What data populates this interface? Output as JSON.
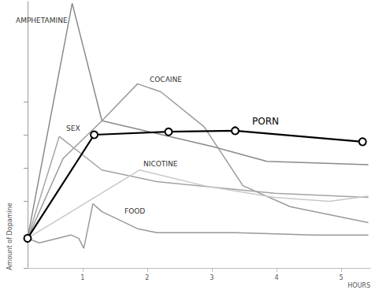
{
  "chart_data": {
    "type": "line",
    "xlabel": "HOURS",
    "ylabel": "Amount of Dopamine",
    "xlim": [
      0.15,
      5.45
    ],
    "xticks": [
      1,
      2,
      3,
      4,
      5
    ],
    "ylim": [
      0,
      8
    ],
    "yticks": [
      0,
      1,
      2,
      3,
      4,
      5
    ],
    "grid": false,
    "tick_labels": "x",
    "series": [
      {
        "name": "AMPHETAMINE",
        "color": "#8a8a8a",
        "x": [
          0.15,
          0.84,
          1.3,
          3.0,
          3.85,
          5.42
        ],
        "values": [
          0.89,
          7.95,
          4.42,
          3.65,
          3.2,
          3.1
        ]
      },
      {
        "name": "COCAINE",
        "color": "#9a9a9a",
        "x": [
          0.15,
          0.7,
          1.3,
          1.85,
          2.21,
          2.88,
          3.48,
          4.21,
          5.42
        ],
        "values": [
          0.89,
          3.29,
          4.42,
          5.53,
          5.29,
          4.24,
          2.47,
          1.84,
          1.36
        ]
      },
      {
        "name": "SEX",
        "color": "#a3a3a3",
        "x": [
          0.15,
          0.64,
          1.3,
          2.15,
          3.97,
          5.42
        ],
        "values": [
          0.89,
          3.95,
          2.94,
          2.59,
          2.24,
          2.12
        ]
      },
      {
        "name": "PORN",
        "color": "#000000",
        "marker": "circle",
        "x": [
          0.15,
          1.18,
          2.33,
          3.36,
          5.33
        ],
        "values": [
          0.89,
          4.0,
          4.09,
          4.12,
          3.79
        ]
      },
      {
        "name": "NICOTINE",
        "color": "#c8c8c8",
        "x": [
          0.15,
          1.88,
          2.88,
          3.97,
          4.82,
          5.42
        ],
        "values": [
          0.89,
          2.94,
          2.47,
          2.12,
          2.0,
          2.16
        ]
      },
      {
        "name": "FOOD",
        "color": "#999999",
        "x": [
          0.15,
          0.33,
          0.82,
          0.94,
          1.02,
          1.16,
          1.3,
          1.85,
          2.15,
          3.36,
          4.58,
          5.42
        ],
        "values": [
          0.89,
          0.75,
          0.99,
          0.89,
          0.59,
          1.93,
          1.69,
          1.18,
          1.06,
          1.06,
          0.99,
          0.99
        ]
      }
    ]
  }
}
